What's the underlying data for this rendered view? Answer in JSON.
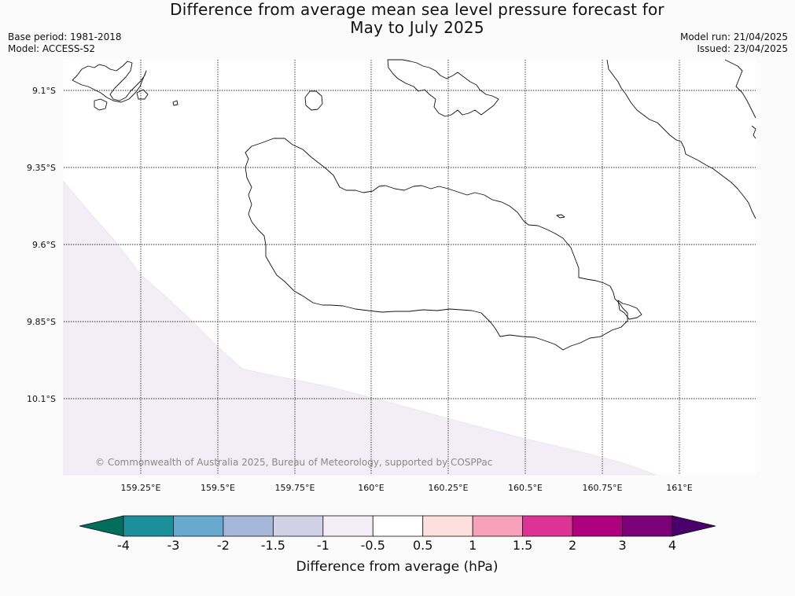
{
  "header": {
    "title_line1": "Difference from average mean sea level pressure forecast for",
    "title_line2": "May to July 2025",
    "base_period": "Base period: 1981-2018",
    "model": "Model: ACCESS-S2",
    "model_run": "Model run: 21/04/2025",
    "issued": "Issued: 23/04/2025"
  },
  "map": {
    "lat_labels": [
      "9.1°S",
      "9.35°S",
      "9.6°S",
      "9.85°S",
      "10.1°S"
    ],
    "lon_labels": [
      "159.25°E",
      "159.5°E",
      "159.75°E",
      "160°E",
      "160.25°E",
      "160.5°E",
      "160.75°E",
      "161°E"
    ],
    "copyright": "© Commonwealth of Australia 2025, Bureau of Meteorology, supported by COSPPac",
    "shaded_class": "-1 to -0.5",
    "shaded_color": "#f3edf6"
  },
  "colorbar": {
    "title": "Difference from average (hPa)",
    "tick_labels": [
      "-4",
      "-3",
      "-2",
      "-1.5",
      "-1",
      "-0.5",
      "0.5",
      "1",
      "1.5",
      "2",
      "3",
      "4"
    ],
    "colors": [
      "#006e5a",
      "#1d8f9a",
      "#66aacf",
      "#a6b8da",
      "#d0d1e6",
      "#f3edf6",
      "#ffffff",
      "#fde0dd",
      "#f7a0bb",
      "#dc3496",
      "#ad017e",
      "#7a0177",
      "#49006a"
    ]
  }
}
